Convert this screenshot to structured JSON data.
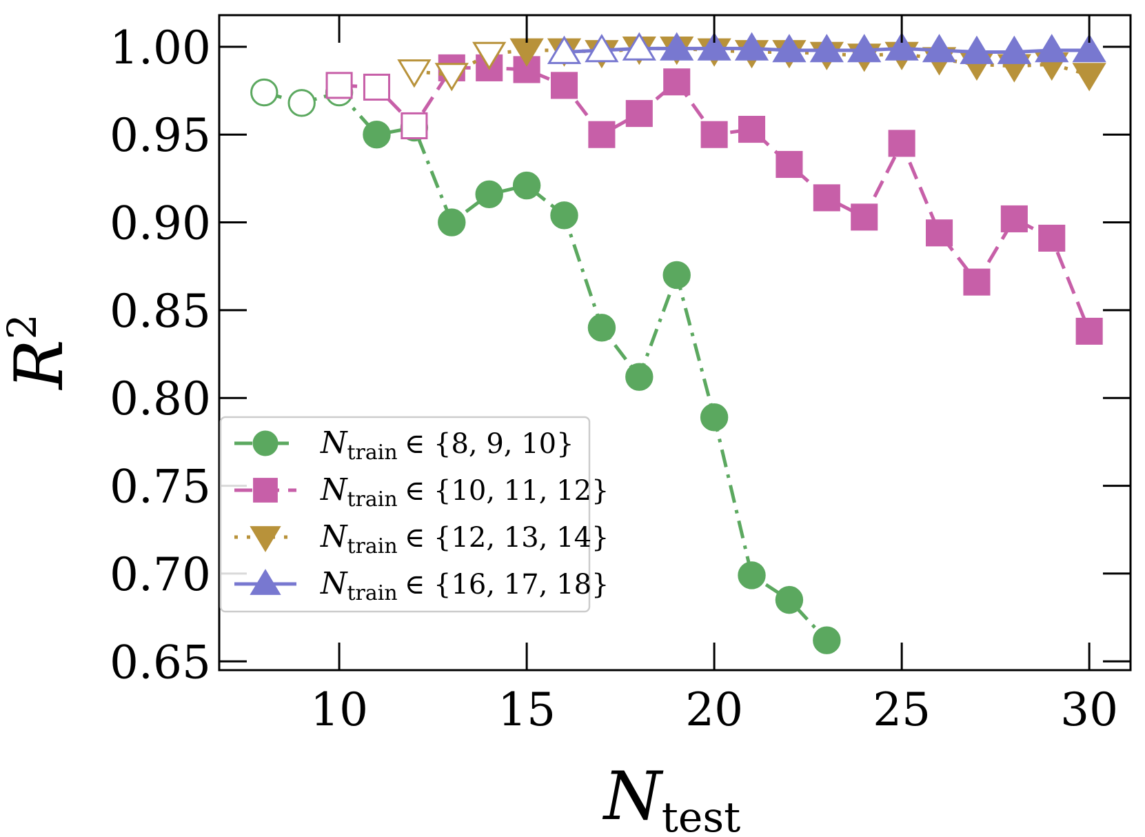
{
  "chart_data": {
    "type": "line",
    "xlabel": "N",
    "xlabel_sub": "test",
    "ylabel": "R",
    "ylabel_sup": "2",
    "xlim": [
      6.8,
      31.1
    ],
    "ylim": [
      0.645,
      1.018
    ],
    "xticks": [
      10,
      15,
      20,
      25,
      30
    ],
    "xtick_labels": [
      "10",
      "15",
      "20",
      "25",
      "30"
    ],
    "yticks": [
      0.65,
      0.7,
      0.75,
      0.8,
      0.85,
      0.9,
      0.95,
      1.0
    ],
    "ytick_labels": [
      "0.65",
      "0.70",
      "0.75",
      "0.80",
      "0.85",
      "0.90",
      "0.95",
      "1.00"
    ],
    "grid": false,
    "legend_position": "lower-left",
    "series": [
      {
        "name": "N_train ∈ {8, 9, 10}",
        "legend_main": "N",
        "legend_sub": "train",
        "legend_set": "∈ {8, 9, 10}",
        "color": "#5ba85f",
        "marker": "circle",
        "linestyle": "dashdot",
        "x": [
          8,
          9,
          10,
          11,
          12,
          13,
          14,
          15,
          16,
          17,
          18,
          19,
          20,
          21,
          22,
          23
        ],
        "y": [
          0.974,
          0.968,
          0.974,
          0.95,
          0.954,
          0.9,
          0.916,
          0.921,
          0.904,
          0.84,
          0.812,
          0.87,
          0.789,
          0.699,
          0.685,
          0.662
        ],
        "training_x": [
          8,
          9,
          10
        ]
      },
      {
        "name": "N_train ∈ {10, 11, 12}",
        "legend_main": "N",
        "legend_sub": "train",
        "legend_set": "∈ {10, 11, 12}",
        "color": "#c75fa8",
        "marker": "square",
        "linestyle": "dashed",
        "x": [
          10,
          11,
          12,
          13,
          14,
          15,
          16,
          17,
          18,
          19,
          20,
          21,
          22,
          23,
          24,
          25,
          26,
          27,
          28,
          29,
          30
        ],
        "y": [
          0.978,
          0.977,
          0.955,
          0.988,
          0.988,
          0.987,
          0.978,
          0.95,
          0.962,
          0.98,
          0.95,
          0.953,
          0.933,
          0.914,
          0.903,
          0.945,
          0.894,
          0.866,
          0.902,
          0.891,
          0.838
        ],
        "training_x": [
          10,
          11,
          12
        ]
      },
      {
        "name": "N_train ∈ {12, 13, 14}",
        "legend_main": "N",
        "legend_sub": "train",
        "legend_set": "∈ {12, 13, 14}",
        "color": "#b8923a",
        "marker": "triangle-down",
        "linestyle": "dotted",
        "x": [
          12,
          13,
          14,
          15,
          16,
          17,
          18,
          19,
          20,
          21,
          22,
          23,
          24,
          25,
          26,
          27,
          28,
          29,
          30
        ],
        "y": [
          0.986,
          0.984,
          0.996,
          0.998,
          0.998,
          0.997,
          0.999,
          0.999,
          0.998,
          0.997,
          0.997,
          0.996,
          0.995,
          0.996,
          0.993,
          0.99,
          0.989,
          0.99,
          0.984
        ],
        "training_x": [
          12,
          13,
          14
        ]
      },
      {
        "name": "N_train ∈ {16, 17, 18}",
        "legend_main": "N",
        "legend_sub": "train",
        "legend_set": "∈ {16, 17, 18}",
        "color": "#7878d0",
        "marker": "triangle-up",
        "linestyle": "solid",
        "x": [
          16,
          17,
          18,
          19,
          20,
          21,
          22,
          23,
          24,
          25,
          26,
          27,
          28,
          29,
          30
        ],
        "y": [
          0.997,
          0.998,
          0.999,
          0.999,
          0.999,
          0.999,
          0.998,
          0.998,
          0.998,
          0.999,
          0.998,
          0.997,
          0.997,
          0.998,
          0.998
        ],
        "training_x": [
          16,
          17,
          18
        ]
      }
    ]
  }
}
